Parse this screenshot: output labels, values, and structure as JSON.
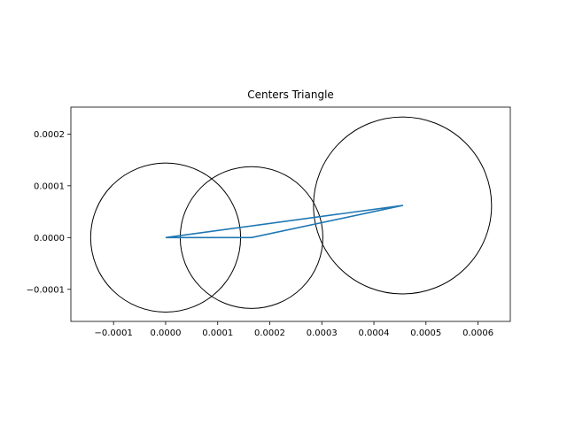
{
  "chart_data": {
    "type": "line",
    "title": "Centers Triangle",
    "xlabel": "",
    "ylabel": "",
    "xlim": [
      -0.000182,
      0.000662
    ],
    "ylim": [
      -0.000162,
      0.000252
    ],
    "grid": false,
    "xticks": [
      {
        "value": -0.0001,
        "label": "−0.0001"
      },
      {
        "value": 0.0,
        "label": "0.0000"
      },
      {
        "value": 0.0001,
        "label": "0.0001"
      },
      {
        "value": 0.0002,
        "label": "0.0002"
      },
      {
        "value": 0.0003,
        "label": "0.0003"
      },
      {
        "value": 0.0004,
        "label": "0.0004"
      },
      {
        "value": 0.0005,
        "label": "0.0005"
      },
      {
        "value": 0.0006,
        "label": "0.0006"
      }
    ],
    "yticks": [
      {
        "value": -0.0001,
        "label": "−0.0001"
      },
      {
        "value": 0.0,
        "label": "0.0000"
      },
      {
        "value": 0.0001,
        "label": "0.0001"
      },
      {
        "value": 0.0002,
        "label": "0.0002"
      }
    ],
    "circles": [
      {
        "cx": 0.0,
        "cy": 0.0,
        "r": 0.000144,
        "color": "#000000"
      },
      {
        "cx": 0.000165,
        "cy": 0.0,
        "r": 0.000137,
        "color": "#000000"
      },
      {
        "cx": 0.000455,
        "cy": 6.2e-05,
        "r": 0.000171,
        "color": "#000000"
      }
    ],
    "series": [
      {
        "color": "#1f77b4",
        "x": [
          0.0,
          0.000165,
          0.000455,
          0.0
        ],
        "y": [
          0.0,
          0.0,
          6.2e-05,
          0.0
        ]
      }
    ]
  }
}
